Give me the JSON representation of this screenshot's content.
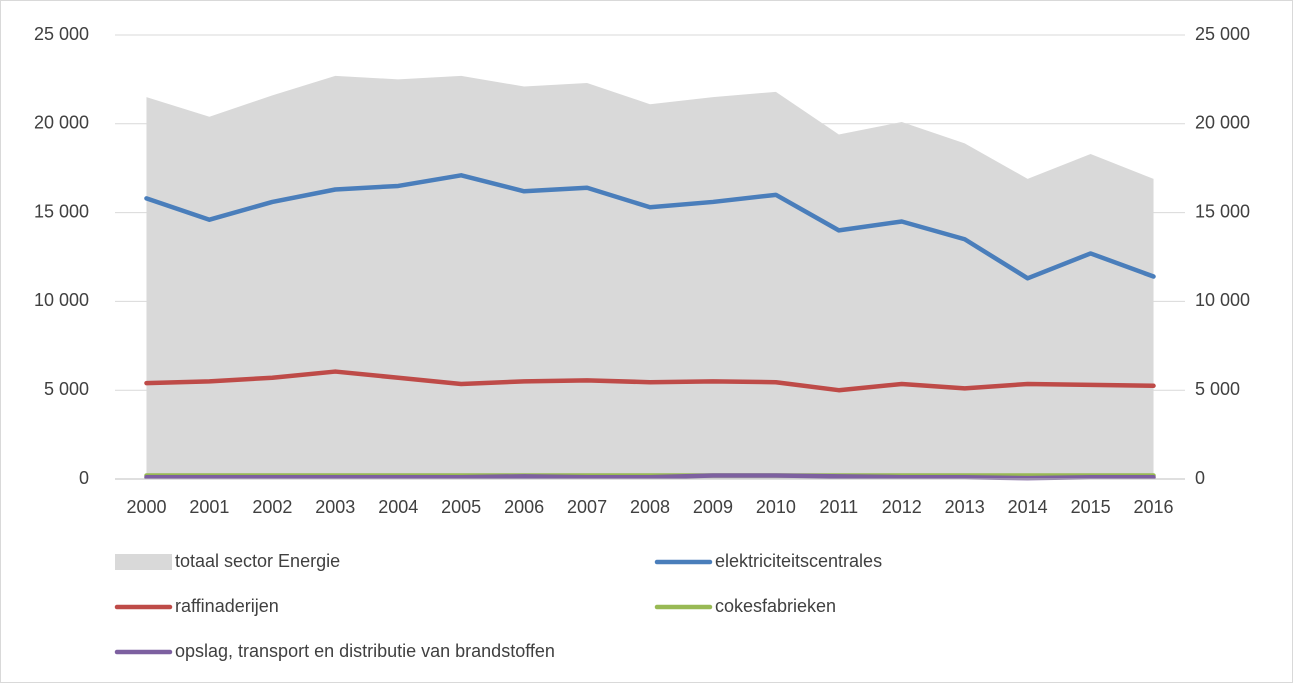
{
  "chart_data": {
    "type": "line",
    "categories": [
      "2000",
      "2001",
      "2002",
      "2003",
      "2004",
      "2005",
      "2006",
      "2007",
      "2008",
      "2009",
      "2010",
      "2011",
      "2012",
      "2013",
      "2014",
      "2015",
      "2016"
    ],
    "series": [
      {
        "name": "totaal sector Energie",
        "type": "area",
        "axis": "y2",
        "color": "#d9d9d9",
        "values": [
          21500,
          20400,
          21600,
          22700,
          22500,
          22700,
          22100,
          22300,
          21100,
          21500,
          21800,
          19400,
          20100,
          18900,
          16900,
          18300,
          16900
        ]
      },
      {
        "name": "elektriciteitscentrales",
        "color": "#4a7ebb",
        "values": [
          15800,
          14600,
          15600,
          16300,
          16500,
          17100,
          16200,
          16400,
          15300,
          15600,
          16000,
          14000,
          14500,
          13500,
          11300,
          12700,
          11400
        ]
      },
      {
        "name": "raffinaderijen",
        "color": "#be4b48",
        "values": [
          5400,
          5500,
          5700,
          6050,
          5700,
          5350,
          5500,
          5550,
          5450,
          5500,
          5450,
          5000,
          5350,
          5100,
          5350,
          5300,
          5250
        ]
      },
      {
        "name": "cokesfabrieken",
        "color": "#98b954",
        "values": [
          200,
          200,
          200,
          200,
          200,
          200,
          200,
          200,
          200,
          200,
          200,
          200,
          200,
          200,
          200,
          200,
          200
        ]
      },
      {
        "name": "opslag, transport en distributie van brandstoffen",
        "color": "#7d60a0",
        "values": [
          100,
          100,
          100,
          100,
          100,
          100,
          150,
          100,
          100,
          200,
          200,
          150,
          100,
          100,
          50,
          100,
          100
        ]
      }
    ],
    "ylim": [
      0,
      25000
    ],
    "yticks": [
      0,
      {
        "value": 5000,
        "label": "5 000"
      },
      {
        "value": 10000,
        "label": "10 000"
      },
      {
        "value": 15000,
        "label": "15 000"
      },
      {
        "value": 20000,
        "label": "20 000"
      },
      {
        "value": 25000,
        "label": "25 000"
      }
    ],
    "y2lim": [
      0,
      25000
    ],
    "y2ticks": [
      0,
      {
        "value": 5000,
        "label": "5 000"
      },
      {
        "value": 10000,
        "label": "10 000"
      },
      {
        "value": 15000,
        "label": "15 000"
      },
      {
        "value": 20000,
        "label": "20 000"
      },
      {
        "value": 25000,
        "label": "25 000"
      }
    ],
    "grid": true,
    "legend": "bottom"
  }
}
